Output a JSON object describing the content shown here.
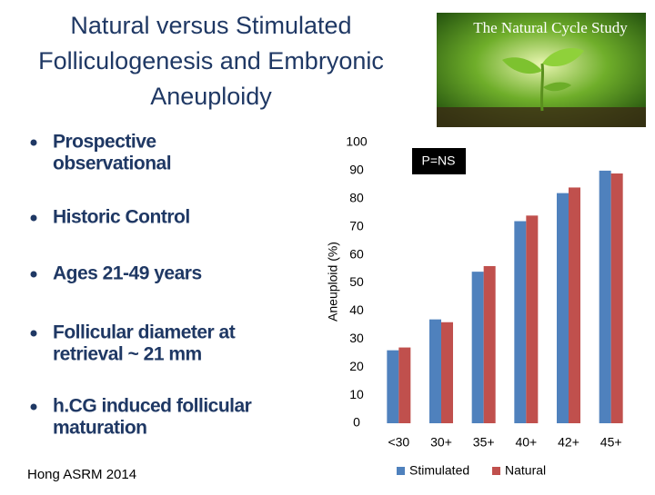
{
  "title_lines": [
    "Natural versus Stimulated",
    "Folliculogenesis and Embryonic",
    "Aneuploidy"
  ],
  "image_caption": "The Natural Cycle Study",
  "bullets": [
    [
      "Prospective",
      "observational"
    ],
    [
      "Historic Control"
    ],
    [
      "Ages 21-49 years"
    ],
    [
      "Follicular diameter at",
      "retrieval ~ 21 mm"
    ],
    [
      "h.CG induced follicular",
      "maturation"
    ]
  ],
  "footnote": "Hong ASRM 2014",
  "chart_data": {
    "type": "bar",
    "y_label": "Aneuploid (%)",
    "annotation": "P=NS",
    "categories": [
      "<30",
      "30+",
      "35+",
      "40+",
      "42+",
      "45+"
    ],
    "series": [
      {
        "name": "Stimulated",
        "color": "#4f81bd",
        "values": [
          26,
          37,
          54,
          72,
          82,
          90
        ]
      },
      {
        "name": "Natural",
        "color": "#c0504d",
        "values": [
          27,
          36,
          56,
          74,
          84,
          89
        ]
      }
    ],
    "ylim": [
      0,
      100
    ],
    "yticks": [
      0,
      10,
      20,
      30,
      40,
      50,
      60,
      70,
      80,
      90,
      100
    ],
    "grid": false
  }
}
